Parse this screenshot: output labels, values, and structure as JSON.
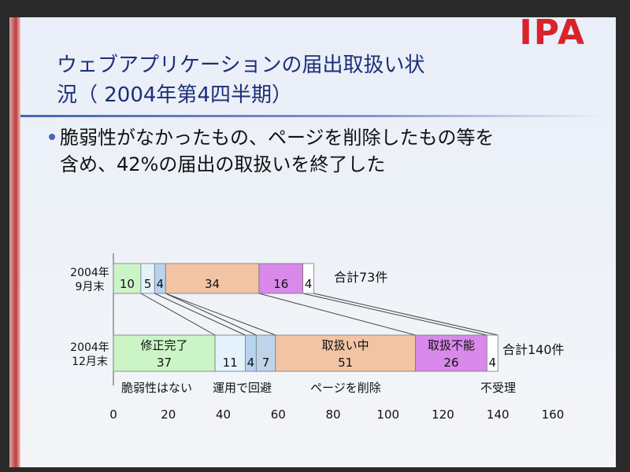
{
  "logo_text": "IPA",
  "title_line1": "ウェブアプリケーションの届出取扱い状",
  "title_line2": "況（ 2004年第4四半期）",
  "bullet_line1": "脆弱性がなかったもの、ページを削除したもの等を",
  "bullet_line2": "含め、42%の届出の取扱いを終了した",
  "colors": {
    "title": "#1d2f77",
    "logo": "#d8232a",
    "fixed": "#ccf5c7",
    "not_vulnerable": "#e3f2fb",
    "operational": "#b8d3ef",
    "page_deleted": "#bfd4ea",
    "in_progress": "#f2c4a4",
    "unable": "#d889ea",
    "rejected": "#ffffff"
  },
  "chart_data": {
    "type": "bar",
    "stacked": true,
    "orientation": "horizontal",
    "xlim": [
      0,
      160
    ],
    "xticks": [
      "0",
      "20",
      "40",
      "60",
      "80",
      "100",
      "120",
      "140",
      "160"
    ],
    "categories": [
      "2004年\n9月末",
      "2004年\n12月末"
    ],
    "totals": [
      "合計73件",
      "合計140件"
    ],
    "series": [
      {
        "name": "修正完了",
        "values": [
          10,
          37
        ],
        "color_key": "fixed"
      },
      {
        "name": "脆弱性はない",
        "values": [
          5,
          11
        ],
        "color_key": "not_vulnerable"
      },
      {
        "name": "運用で回避",
        "values": [
          4,
          4
        ],
        "color_key": "operational"
      },
      {
        "name": "ページを削除",
        "values": [
          0,
          7
        ],
        "color_key": "page_deleted"
      },
      {
        "name": "取扱い中",
        "values": [
          34,
          51
        ],
        "color_key": "in_progress"
      },
      {
        "name": "取扱不能",
        "values": [
          16,
          26
        ],
        "color_key": "unable"
      },
      {
        "name": "不受理",
        "values": [
          4,
          4
        ],
        "color_key": "rejected"
      }
    ],
    "inside_labels": [
      "修正完了",
      "取扱い中",
      "取扱不能"
    ],
    "below_labels": [
      "脆弱性はない",
      "運用で回避",
      "ページを削除",
      "不受理"
    ]
  }
}
